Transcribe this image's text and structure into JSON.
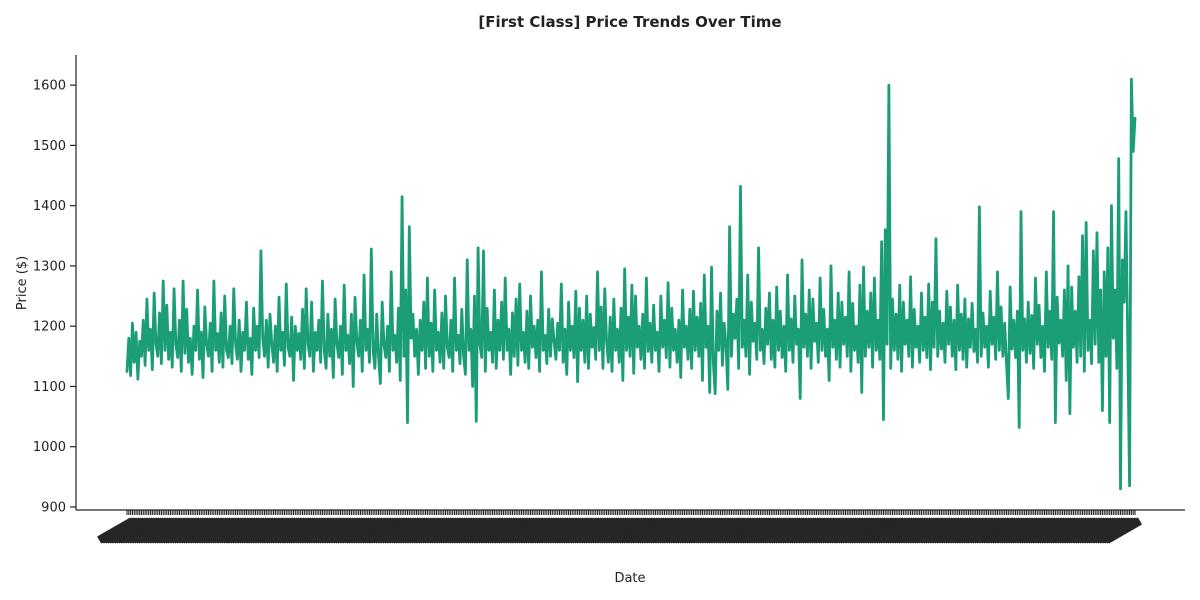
{
  "chart_data": {
    "type": "line",
    "title": "[First Class] Price Trends Over Time",
    "xlabel": "Date",
    "ylabel": "Price ($)",
    "ylim": [
      895,
      1650
    ],
    "yticks": [
      900,
      1000,
      1100,
      1200,
      1300,
      1400,
      1500,
      1600
    ],
    "grid": false,
    "legend": "none",
    "x_tick_labels": "dense overlapping date labels (unreadable)",
    "series": [
      {
        "color": "#1b9e77",
        "values": [
          1125,
          1180,
          1118,
          1205,
          1140,
          1190,
          1112,
          1175,
          1150,
          1210,
          1135,
          1245,
          1160,
          1195,
          1128,
          1255,
          1170,
          1150,
          1222,
          1138,
          1275,
          1160,
          1235,
          1145,
          1190,
          1132,
          1262,
          1170,
          1148,
          1210,
          1125,
          1275,
          1155,
          1228,
          1140,
          1180,
          1120,
          1200,
          1160,
          1260,
          1145,
          1190,
          1115,
          1232,
          1170,
          1150,
          1205,
          1125,
          1275,
          1160,
          1188,
          1140,
          1222,
          1132,
          1250,
          1160,
          1148,
          1200,
          1138,
          1262,
          1170,
          1145,
          1210,
          1125,
          1190,
          1160,
          1240,
          1145,
          1180,
          1120,
          1230,
          1160,
          1200,
          1148,
          1325,
          1180,
          1150,
          1210,
          1132,
          1220,
          1170,
          1140,
          1200,
          1125,
          1248,
          1160,
          1190,
          1135,
          1270,
          1165,
          1150,
          1215,
          1110,
          1200,
          1160,
          1188,
          1145,
          1228,
          1130,
          1262,
          1170,
          1150,
          1240,
          1125,
          1190,
          1160,
          1210,
          1140,
          1275,
          1160,
          1130,
          1220,
          1150,
          1195,
          1115,
          1245,
          1170,
          1148,
          1200,
          1120,
          1268,
          1160,
          1185,
          1138,
          1220,
          1100,
          1248,
          1175,
          1150,
          1210,
          1125,
          1285,
          1160,
          1195,
          1140,
          1328,
          1160,
          1130,
          1220,
          1150,
          1105,
          1240,
          1170,
          1148,
          1200,
          1125,
          1290,
          1160,
          1185,
          1140,
          1230,
          1110,
          1415,
          1150,
          1260,
          1040,
          1365,
          1180,
          1220,
          1150,
          1195,
          1120,
          1210,
          1160,
          1240,
          1130,
          1280,
          1150,
          1205,
          1125,
          1260,
          1160,
          1190,
          1140,
          1222,
          1130,
          1250,
          1165,
          1148,
          1210,
          1125,
          1280,
          1160,
          1185,
          1138,
          1228,
          1150,
          1120,
          1310,
          1160,
          1195,
          1100,
          1250,
          1042,
          1330,
          1170,
          1148,
          1325,
          1125,
          1230,
          1160,
          1190,
          1140,
          1260,
          1130,
          1210,
          1160,
          1240,
          1145,
          1280,
          1160,
          1195,
          1120,
          1222,
          1150,
          1245,
          1135,
          1270,
          1160,
          1190,
          1140,
          1225,
          1130,
          1250,
          1165,
          1200,
          1148,
          1210,
          1125,
          1290,
          1160,
          1185,
          1138,
          1228,
          1150,
          1212,
          1175,
          1145,
          1205,
          1160,
          1270,
          1140,
          1195,
          1120,
          1240,
          1160,
          1200,
          1148,
          1258,
          1108,
          1230,
          1160,
          1210,
          1140,
          1250,
          1130,
          1220,
          1165,
          1198,
          1145,
          1290,
          1160,
          1232,
          1130,
          1262,
          1175,
          1140,
          1215,
          1125,
          1245,
          1160,
          1195,
          1140,
          1230,
          1110,
          1295,
          1160,
          1215,
          1150,
          1268,
          1122,
          1250,
          1165,
          1200,
          1145,
          1220,
          1130,
          1280,
          1158,
          1205,
          1140,
          1235,
          1160,
          1190,
          1125,
          1250,
          1165,
          1210,
          1148,
          1272,
          1132,
          1230,
          1160,
          1195,
          1140,
          1210,
          1115,
          1260,
          1165,
          1200,
          1145,
          1228,
          1130,
          1258,
          1160,
          1215,
          1150,
          1238,
          1110,
          1285,
          1165,
          1200,
          1090,
          1298,
          1140,
          1088,
          1225,
          1160,
          1255,
          1135,
          1205,
          1168,
          1095,
          1365,
          1150,
          1220,
          1180,
          1245,
          1130,
          1432,
          1165,
          1210,
          1150,
          1285,
          1120,
          1240,
          1175,
          1205,
          1145,
          1330,
          1160,
          1195,
          1138,
          1230,
          1170,
          1255,
          1145,
          1210,
          1132,
          1265,
          1160,
          1225,
          1148,
          1200,
          1125,
          1285,
          1160,
          1212,
          1140,
          1250,
          1170,
          1195,
          1080,
          1310,
          1165,
          1220,
          1150,
          1260,
          1130,
          1245,
          1175,
          1205,
          1140,
          1280,
          1160,
          1228,
          1150,
          1195,
          1110,
          1300,
          1165,
          1210,
          1145,
          1255,
          1132,
          1240,
          1170,
          1215,
          1150,
          1290,
          1125,
          1238,
          1160,
          1200,
          1140,
          1268,
          1090,
          1298,
          1150,
          1225,
          1165,
          1255,
          1132,
          1280,
          1160,
          1210,
          1145,
          1340,
          1045,
          1360,
          1170,
          1600,
          1130,
          1245,
          1160,
          1220,
          1145,
          1268,
          1125,
          1240,
          1170,
          1210,
          1150,
          1282,
          1132,
          1228,
          1165,
          1200,
          1140,
          1255,
          1160,
          1215,
          1148,
          1270,
          1128,
          1240,
          1165,
          1345,
          1150,
          1225,
          1162,
          1205,
          1140,
          1258,
          1170,
          1232,
          1150,
          1210,
          1128,
          1268,
          1160,
          1220,
          1145,
          1245,
          1132,
          1212,
          1165,
          1238,
          1158,
          1195,
          1140,
          1398,
          1150,
          1222,
          1165,
          1200,
          1132,
          1258,
          1170,
          1215,
          1145,
          1290,
          1160,
          1232,
          1150,
          1205,
          1138,
          1080,
          1265,
          1162,
          1210,
          1148,
          1225,
          1032,
          1390,
          1160,
          1212,
          1140,
          1240,
          1155,
          1218,
          1130,
          1280,
          1170,
          1235,
          1148,
          1200,
          1125,
          1290,
          1165,
          1225,
          1145,
          1390,
          1040,
          1248,
          1172,
          1210,
          1150,
          1260,
          1110,
          1300,
          1055,
          1265,
          1165,
          1225,
          1140,
          1282,
          1150,
          1350,
          1125,
          1372,
          1160,
          1210,
          1138,
          1325,
          1170,
          1355,
          1140,
          1260,
          1060,
          1290,
          1150,
          1330,
          1040,
          1400,
          1180,
          1260,
          1130,
          1478,
          930,
          1310,
          1240,
          1390,
          1172,
          935,
          1610,
          1490,
          1545
        ]
      }
    ]
  }
}
